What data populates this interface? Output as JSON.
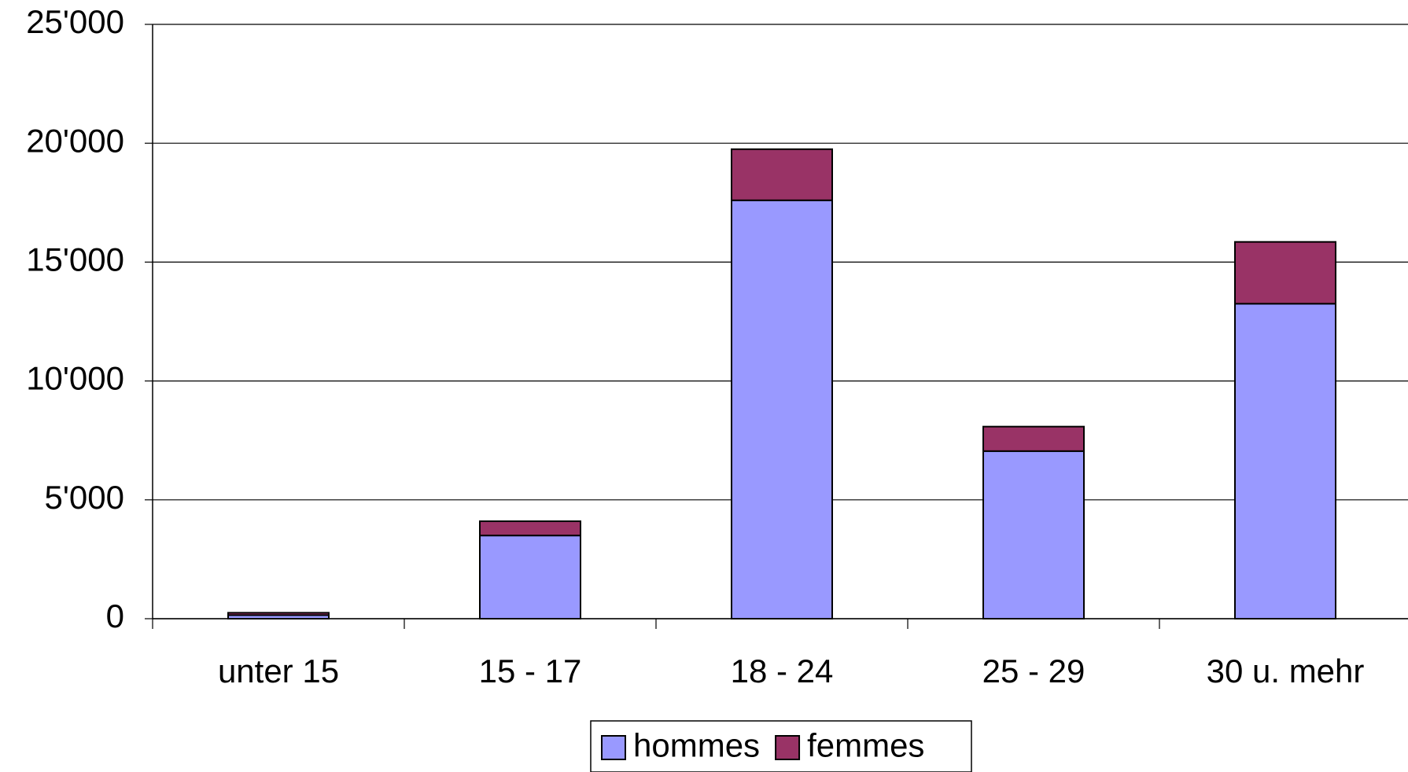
{
  "chart_data": {
    "type": "stacked_bar",
    "categories": [
      "unter 15",
      "15 - 17",
      "18 - 24",
      "25 - 29",
      "30 u. mehr"
    ],
    "series": [
      {
        "name": "hommes",
        "color": "#9999ff",
        "values": [
          150,
          3500,
          17600,
          7050,
          13250
        ]
      },
      {
        "name": "femmes",
        "color": "#993366",
        "values": [
          100,
          600,
          2150,
          1030,
          2600
        ]
      }
    ],
    "ylim": [
      0,
      25000
    ],
    "yticks": [
      0,
      {
        "value": 5000,
        "label": "5'000"
      },
      {
        "value": 10000,
        "label": "10'000"
      },
      {
        "value": 15000,
        "label": "15'000"
      },
      {
        "value": 20000,
        "label": "20'000"
      },
      {
        "value": 25000,
        "label": "25'000"
      }
    ],
    "grid": true,
    "legend": "bottom"
  }
}
